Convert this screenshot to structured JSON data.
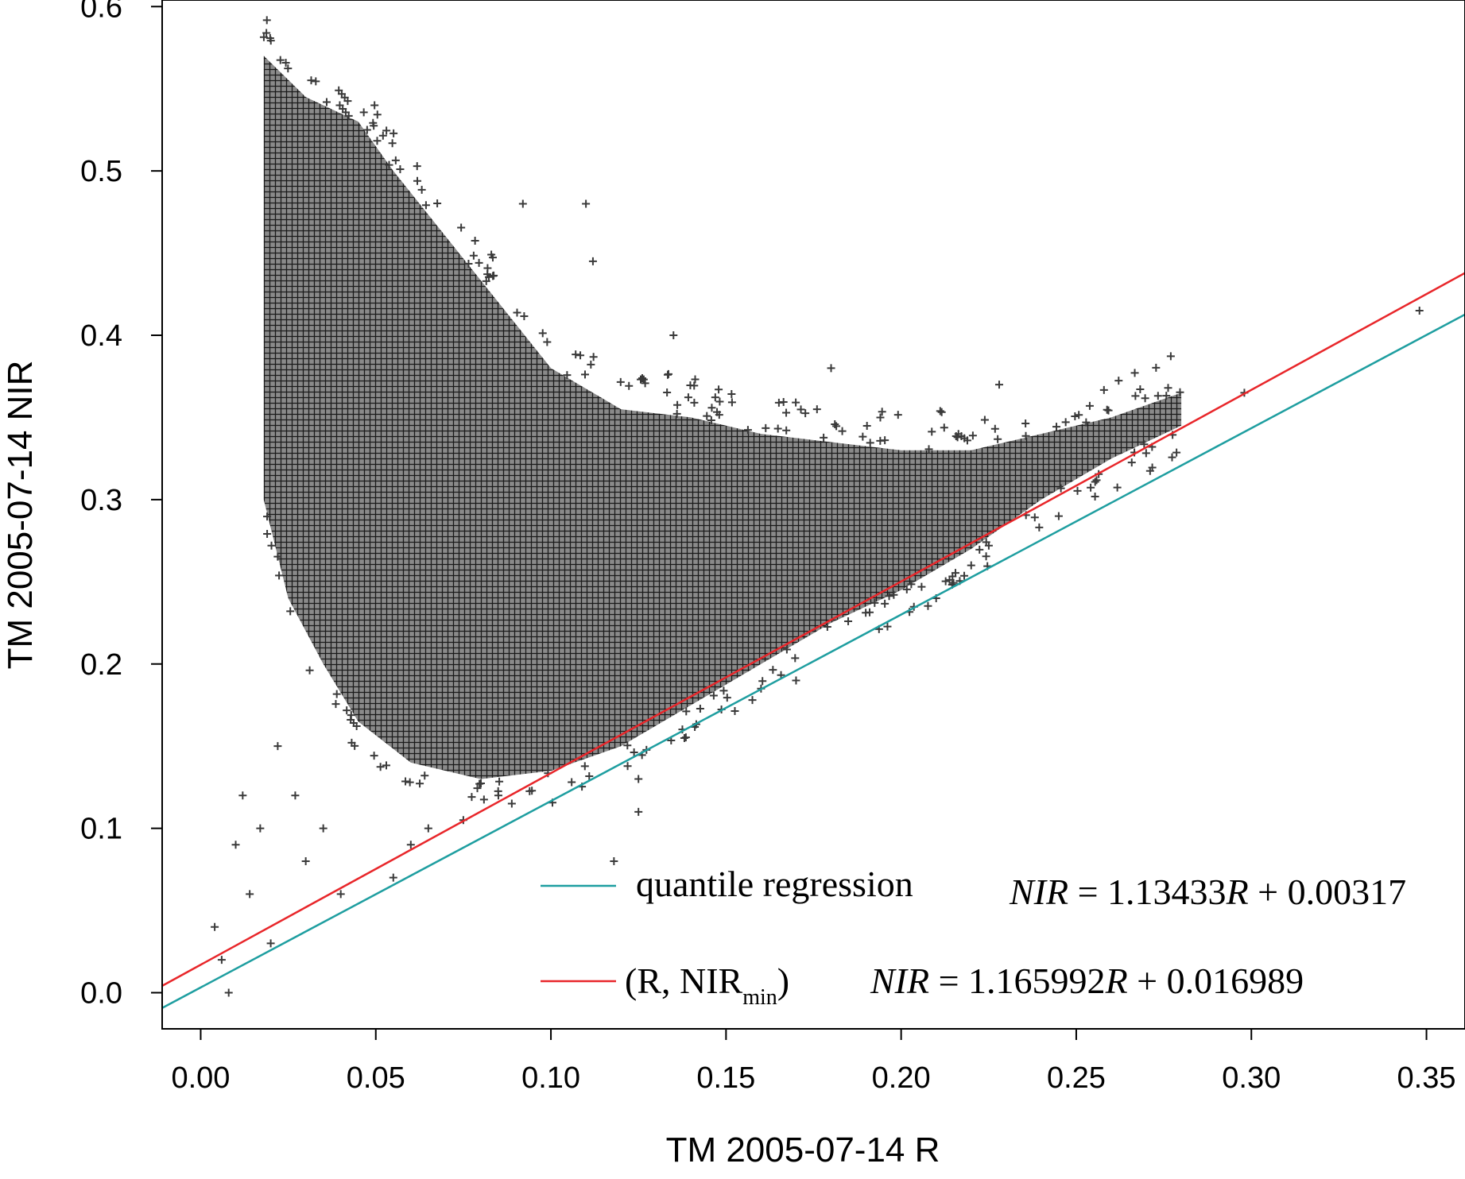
{
  "chart_data": {
    "type": "scatter",
    "title": "",
    "xlabel": "TM 2005-07-14 R",
    "ylabel": "TM 2005-07-14 NIR",
    "xlim": [
      -0.011,
      0.361
    ],
    "ylim": [
      -0.022,
      0.604
    ],
    "x_ticks": [
      0.0,
      0.05,
      0.1,
      0.15,
      0.2,
      0.25,
      0.3,
      0.35
    ],
    "x_tick_labels": [
      "0.00",
      "0.05",
      "0.10",
      "0.15",
      "0.20",
      "0.25",
      "0.30",
      "0.35"
    ],
    "y_ticks": [
      0.0,
      0.1,
      0.2,
      0.3,
      0.4,
      0.5,
      0.6
    ],
    "y_tick_labels": [
      "0.0",
      "0.1",
      "0.2",
      "0.3",
      "0.4",
      "0.5",
      "0.6"
    ],
    "grid": false,
    "legend_position": "bottom-right",
    "point_cloud": {
      "marker": "+",
      "color": "#3a3a3a",
      "dense_region_upper_boundary": [
        [
          0.018,
          0.57
        ],
        [
          0.03,
          0.545
        ],
        [
          0.045,
          0.53
        ],
        [
          0.055,
          0.5
        ],
        [
          0.07,
          0.46
        ],
        [
          0.085,
          0.42
        ],
        [
          0.1,
          0.38
        ],
        [
          0.12,
          0.355
        ],
        [
          0.14,
          0.35
        ],
        [
          0.16,
          0.34
        ],
        [
          0.18,
          0.335
        ],
        [
          0.2,
          0.33
        ],
        [
          0.22,
          0.33
        ],
        [
          0.24,
          0.34
        ],
        [
          0.26,
          0.35
        ],
        [
          0.28,
          0.365
        ]
      ],
      "dense_region_lower_boundary": [
        [
          0.018,
          0.3
        ],
        [
          0.025,
          0.24
        ],
        [
          0.035,
          0.2
        ],
        [
          0.045,
          0.165
        ],
        [
          0.06,
          0.14
        ],
        [
          0.08,
          0.13
        ],
        [
          0.1,
          0.135
        ],
        [
          0.12,
          0.15
        ],
        [
          0.14,
          0.175
        ],
        [
          0.16,
          0.2
        ],
        [
          0.18,
          0.225
        ],
        [
          0.2,
          0.245
        ],
        [
          0.22,
          0.27
        ],
        [
          0.24,
          0.3
        ],
        [
          0.26,
          0.325
        ],
        [
          0.28,
          0.345
        ]
      ],
      "outliers": [
        [
          0.004,
          0.04
        ],
        [
          0.006,
          0.02
        ],
        [
          0.008,
          0.0
        ],
        [
          0.01,
          0.09
        ],
        [
          0.012,
          0.12
        ],
        [
          0.014,
          0.06
        ],
        [
          0.017,
          0.1
        ],
        [
          0.02,
          0.03
        ],
        [
          0.022,
          0.15
        ],
        [
          0.027,
          0.12
        ],
        [
          0.03,
          0.08
        ],
        [
          0.035,
          0.1
        ],
        [
          0.04,
          0.06
        ],
        [
          0.055,
          0.07
        ],
        [
          0.06,
          0.09
        ],
        [
          0.065,
          0.1
        ],
        [
          0.075,
          0.105
        ],
        [
          0.085,
          0.12
        ],
        [
          0.092,
          0.48
        ],
        [
          0.11,
          0.48
        ],
        [
          0.112,
          0.445
        ],
        [
          0.118,
          0.08
        ],
        [
          0.125,
          0.13
        ],
        [
          0.125,
          0.11
        ],
        [
          0.135,
          0.4
        ],
        [
          0.16,
          0.185
        ],
        [
          0.17,
          0.19
        ],
        [
          0.18,
          0.38
        ],
        [
          0.21,
          0.24
        ],
        [
          0.22,
          0.26
        ],
        [
          0.228,
          0.37
        ],
        [
          0.245,
          0.29
        ],
        [
          0.298,
          0.365
        ],
        [
          0.348,
          0.415
        ]
      ]
    },
    "series": [
      {
        "name": "quantile regression",
        "type": "line",
        "color": "#1e9ea0",
        "equation": "NIR = 1.13433R + 0.00317",
        "slope": 1.13433,
        "intercept": 0.00317,
        "x_range": [
          -0.011,
          0.361
        ]
      },
      {
        "name": "(R, NIRmin)",
        "type": "line",
        "color": "#e8262a",
        "equation": "NIR = 1.165992R + 0.016989",
        "slope": 1.165992,
        "intercept": 0.016989,
        "x_range": [
          -0.011,
          0.361
        ]
      }
    ],
    "legend": [
      {
        "label": "quantile regression",
        "eq_lhs": "NIR",
        "eq_mid": " = 1.13433",
        "eq_var": "R",
        "eq_rhs": " + 0.00317"
      },
      {
        "label_main": "(R, NIR",
        "label_sub": "min",
        "label_close": ")",
        "eq_lhs": "NIR",
        "eq_mid": " = 1.165992",
        "eq_var": "R",
        "eq_rhs": " + 0.016989"
      }
    ]
  }
}
